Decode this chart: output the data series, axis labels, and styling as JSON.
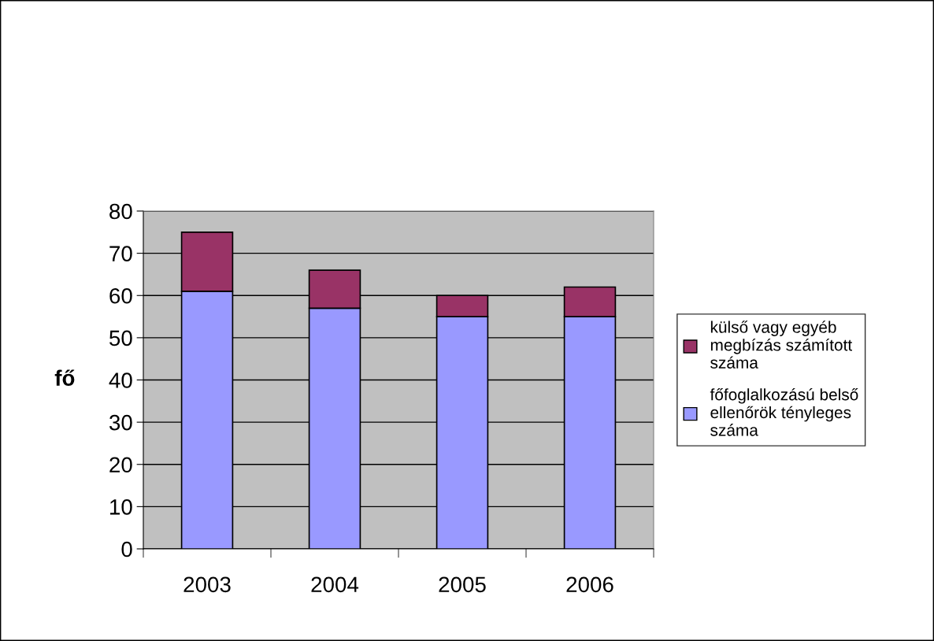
{
  "chart_data": {
    "type": "bar",
    "stacked": true,
    "ylabel": "fő",
    "categories": [
      "2003",
      "2004",
      "2005",
      "2006"
    ],
    "series": [
      {
        "name": "főfoglalkozású belső ellenőrök tényleges száma",
        "color": "#9999ff",
        "values": [
          61,
          57,
          55,
          55
        ]
      },
      {
        "name": "külső vagy egyéb megbízás számított száma",
        "color": "#993366",
        "values": [
          14,
          9,
          5,
          7
        ]
      }
    ],
    "ylim": [
      0,
      80
    ],
    "yticks": [
      0,
      10,
      20,
      30,
      40,
      50,
      60,
      70,
      80
    ],
    "grid": "y",
    "legend": "right"
  }
}
